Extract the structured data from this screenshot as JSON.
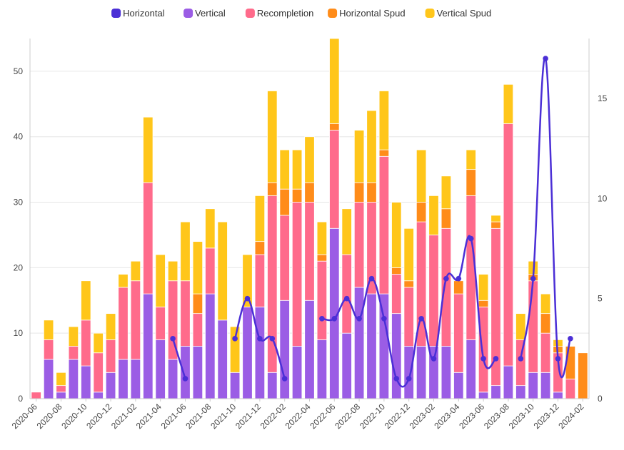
{
  "chart_data": {
    "type": "bar",
    "stacked": true,
    "legend_position": "top-center",
    "grid": "horizontal",
    "categories": [
      "2020-06",
      "2020-07",
      "2020-08",
      "2020-09",
      "2020-10",
      "2020-11",
      "2020-12",
      "2021-01",
      "2021-02",
      "2021-03",
      "2021-04",
      "2021-05",
      "2021-06",
      "2021-07",
      "2021-08",
      "2021-09",
      "2021-10",
      "2021-11",
      "2021-12",
      "2022-01",
      "2022-02",
      "2022-03",
      "2022-04",
      "2022-05",
      "2022-06",
      "2022-07",
      "2022-08",
      "2022-09",
      "2022-10",
      "2022-11",
      "2022-12",
      "2023-01",
      "2023-02",
      "2023-03",
      "2023-04",
      "2023-05",
      "2023-06",
      "2023-07",
      "2023-08",
      "2023-09",
      "2023-10",
      "2023-11",
      "2023-12",
      "2024-01",
      "2024-02"
    ],
    "x_tick_labels": [
      "2020-06",
      "2020-08",
      "2020-10",
      "2020-12",
      "2021-02",
      "2021-04",
      "2021-06",
      "2021-08",
      "2021-10",
      "2021-12",
      "2022-02",
      "2022-04",
      "2022-06",
      "2022-08",
      "2022-10",
      "2022-12",
      "2023-02",
      "2023-04",
      "2023-06",
      "2023-08",
      "2023-10",
      "2023-12",
      "2024-02"
    ],
    "ylim": [
      0,
      55
    ],
    "y_ticks": [
      0,
      10,
      20,
      30,
      40,
      50
    ],
    "y2lim": [
      0,
      18
    ],
    "y2_ticks": [
      0,
      5,
      10,
      15
    ],
    "series": [
      {
        "name": "Vertical",
        "kind": "bar",
        "color": "#9b5de5",
        "values": [
          0,
          6,
          1,
          6,
          5,
          1,
          4,
          6,
          6,
          16,
          9,
          6,
          8,
          8,
          16,
          12,
          4,
          14,
          14,
          4,
          15,
          8,
          15,
          9,
          26,
          10,
          17,
          16,
          16,
          13,
          8,
          8,
          8,
          8,
          4,
          9,
          1,
          2,
          5,
          2,
          4,
          4,
          1,
          0,
          0
        ]
      },
      {
        "name": "Recompletion",
        "kind": "bar",
        "color": "#ff6b8b",
        "values": [
          1,
          3,
          1,
          2,
          7,
          6,
          5,
          11,
          12,
          17,
          5,
          12,
          10,
          5,
          7,
          0,
          0,
          0,
          8,
          27,
          13,
          22,
          15,
          12,
          15,
          12,
          13,
          14,
          21,
          6,
          9,
          19,
          17,
          18,
          12,
          22,
          13,
          24,
          37,
          7,
          14,
          6,
          6,
          3,
          0
        ]
      },
      {
        "name": "Horizontal Spud",
        "kind": "bar",
        "color": "#ff8c19",
        "values": [
          0,
          0,
          0,
          0,
          0,
          0,
          0,
          0,
          0,
          0,
          0,
          0,
          0,
          3,
          0,
          0,
          0,
          0,
          2,
          2,
          4,
          2,
          3,
          1,
          1,
          0,
          3,
          3,
          1,
          1,
          1,
          3,
          0,
          3,
          2,
          4,
          1,
          1,
          0,
          0,
          1,
          3,
          1,
          5,
          7
        ]
      },
      {
        "name": "Vertical Spud",
        "kind": "bar",
        "color": "#ffc61a",
        "values": [
          0,
          3,
          2,
          3,
          6,
          3,
          4,
          2,
          3,
          10,
          8,
          3,
          9,
          8,
          6,
          15,
          7,
          8,
          7,
          14,
          6,
          6,
          7,
          5,
          13,
          7,
          8,
          11,
          9,
          10,
          8,
          8,
          6,
          5,
          0,
          3,
          4,
          1,
          6,
          4,
          2,
          3,
          1,
          0,
          0
        ]
      },
      {
        "name": "Horizontal",
        "kind": "line",
        "axis": "right",
        "color": "#4b2fd6",
        "values": [
          null,
          null,
          null,
          null,
          null,
          null,
          null,
          null,
          null,
          null,
          null,
          3,
          1,
          null,
          null,
          null,
          3,
          5,
          3,
          3,
          1,
          null,
          null,
          4,
          4,
          5,
          4,
          6,
          4,
          1,
          1,
          4,
          2,
          6,
          6,
          8,
          2,
          2,
          null,
          2,
          6,
          17,
          2,
          3,
          null
        ]
      }
    ]
  }
}
